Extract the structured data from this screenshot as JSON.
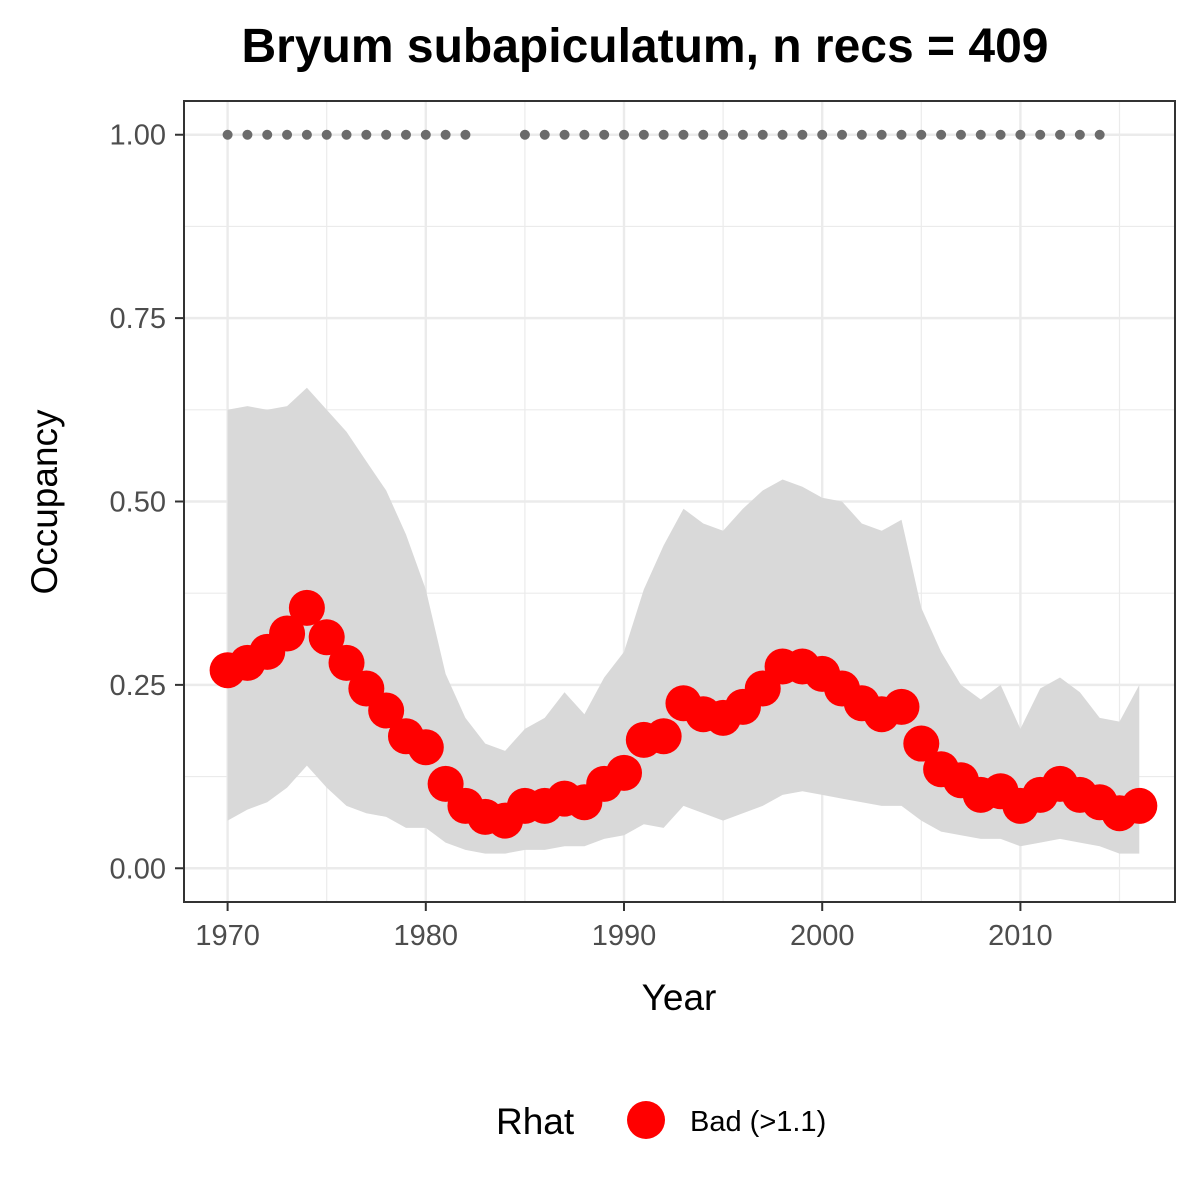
{
  "chart_data": {
    "type": "line",
    "title": "Bryum subapiculatum, n recs = 409",
    "xlabel": "Year",
    "ylabel": "Occupancy",
    "xlim": [
      1967.8,
      2017.8
    ],
    "ylim": [
      -0.046,
      1.046
    ],
    "x_ticks": [
      1970,
      1980,
      1990,
      2000,
      2010
    ],
    "x_tick_labels": [
      "1970",
      "1980",
      "1990",
      "2000",
      "2010"
    ],
    "y_ticks": [
      0,
      0.25,
      0.5,
      0.75,
      1.0
    ],
    "y_tick_labels": [
      "0.00",
      "0.25",
      "0.50",
      "0.75",
      "1.00"
    ],
    "grid": true,
    "legend": {
      "position": "bottom",
      "title": "Rhat",
      "entries": [
        {
          "label": "Bad (>1.1)",
          "color": "#ff0000"
        }
      ]
    },
    "colors": {
      "points": "#ff0000",
      "ribbon": "#d9d9d9",
      "record_dots": "#6b6b6b",
      "grid": "#ebebeb",
      "panel_border": "#333333"
    },
    "series": [
      {
        "name": "Occupancy",
        "type": "points",
        "x": [
          1970,
          1971,
          1972,
          1973,
          1974,
          1975,
          1976,
          1977,
          1978,
          1979,
          1980,
          1981,
          1982,
          1983,
          1984,
          1985,
          1986,
          1987,
          1988,
          1989,
          1990,
          1991,
          1992,
          1993,
          1994,
          1995,
          1996,
          1997,
          1998,
          1999,
          2000,
          2001,
          2002,
          2003,
          2004,
          2005,
          2006,
          2007,
          2008,
          2009,
          2010,
          2011,
          2012,
          2013,
          2014,
          2015,
          2016
        ],
        "values": [
          0.27,
          0.28,
          0.295,
          0.32,
          0.355,
          0.315,
          0.28,
          0.245,
          0.215,
          0.18,
          0.165,
          0.115,
          0.085,
          0.07,
          0.065,
          0.085,
          0.085,
          0.095,
          0.09,
          0.115,
          0.13,
          0.175,
          0.18,
          0.225,
          0.21,
          0.205,
          0.22,
          0.245,
          0.275,
          0.275,
          0.265,
          0.245,
          0.225,
          0.21,
          0.22,
          0.17,
          0.135,
          0.12,
          0.1,
          0.105,
          0.085,
          0.1,
          0.115,
          0.1,
          0.09,
          0.075,
          0.085
        ]
      },
      {
        "name": "95% CI",
        "type": "ribbon",
        "x": [
          1970,
          1971,
          1972,
          1973,
          1974,
          1975,
          1976,
          1977,
          1978,
          1979,
          1980,
          1981,
          1982,
          1983,
          1984,
          1985,
          1986,
          1987,
          1988,
          1989,
          1990,
          1991,
          1992,
          1993,
          1994,
          1995,
          1996,
          1997,
          1998,
          1999,
          2000,
          2001,
          2002,
          2003,
          2004,
          2005,
          2006,
          2007,
          2008,
          2009,
          2010,
          2011,
          2012,
          2013,
          2014,
          2015,
          2016
        ],
        "lower": [
          0.065,
          0.08,
          0.09,
          0.11,
          0.14,
          0.11,
          0.085,
          0.075,
          0.07,
          0.055,
          0.055,
          0.035,
          0.025,
          0.02,
          0.02,
          0.025,
          0.025,
          0.03,
          0.03,
          0.04,
          0.045,
          0.06,
          0.055,
          0.085,
          0.075,
          0.065,
          0.075,
          0.085,
          0.1,
          0.105,
          0.1,
          0.095,
          0.09,
          0.085,
          0.085,
          0.065,
          0.05,
          0.045,
          0.04,
          0.04,
          0.03,
          0.035,
          0.04,
          0.035,
          0.03,
          0.02,
          0.02
        ],
        "upper": [
          0.625,
          0.63,
          0.625,
          0.63,
          0.655,
          0.625,
          0.595,
          0.555,
          0.515,
          0.455,
          0.38,
          0.265,
          0.205,
          0.17,
          0.16,
          0.19,
          0.205,
          0.24,
          0.21,
          0.26,
          0.295,
          0.38,
          0.44,
          0.49,
          0.47,
          0.46,
          0.49,
          0.515,
          0.53,
          0.52,
          0.505,
          0.5,
          0.47,
          0.46,
          0.475,
          0.355,
          0.295,
          0.25,
          0.23,
          0.25,
          0.19,
          0.245,
          0.26,
          0.24,
          0.205,
          0.2,
          0.25
        ]
      },
      {
        "name": "Records",
        "type": "points",
        "x": [
          1970,
          1971,
          1972,
          1973,
          1974,
          1975,
          1976,
          1977,
          1978,
          1979,
          1980,
          1981,
          1982,
          1985,
          1986,
          1987,
          1988,
          1989,
          1990,
          1991,
          1992,
          1993,
          1994,
          1995,
          1996,
          1997,
          1998,
          1999,
          2000,
          2001,
          2002,
          2003,
          2004,
          2005,
          2006,
          2007,
          2008,
          2009,
          2010,
          2011,
          2012,
          2013,
          2014
        ],
        "values": [
          1,
          1,
          1,
          1,
          1,
          1,
          1,
          1,
          1,
          1,
          1,
          1,
          1,
          1,
          1,
          1,
          1,
          1,
          1,
          1,
          1,
          1,
          1,
          1,
          1,
          1,
          1,
          1,
          1,
          1,
          1,
          1,
          1,
          1,
          1,
          1,
          1,
          1,
          1,
          1,
          1,
          1,
          1
        ]
      }
    ]
  }
}
